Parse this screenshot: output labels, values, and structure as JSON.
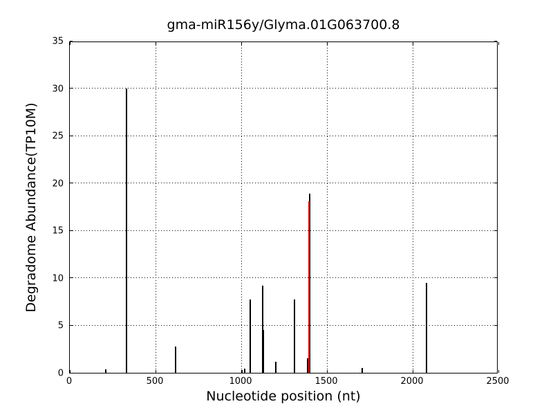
{
  "chart_data": {
    "type": "bar",
    "title": "gma-miR156y/Glyma.01G063700.8",
    "xlabel": "Nucleotide position (nt)",
    "ylabel": "Degradome Abundance(TP10M)",
    "xlim": [
      0,
      2500
    ],
    "ylim": [
      0,
      35
    ],
    "x_ticks": [
      0,
      500,
      1000,
      1500,
      2000,
      2500
    ],
    "y_ticks": [
      0,
      5,
      10,
      15,
      20,
      25,
      30,
      35
    ],
    "grid": {
      "x_lines": [
        500,
        1000,
        1500,
        2000
      ],
      "y_lines": [
        5,
        10,
        15,
        20,
        25,
        30
      ],
      "style": "dotted",
      "color": "#000000"
    },
    "bar_color_default": "#000000",
    "highlight_color": "#ff0000",
    "bars": [
      {
        "x": 208,
        "y": 0.4,
        "color": "#000000"
      },
      {
        "x": 332,
        "y": 30.0,
        "color": "#000000"
      },
      {
        "x": 618,
        "y": 2.75,
        "color": "#000000"
      },
      {
        "x": 1004,
        "y": 0.3,
        "color": "#000000"
      },
      {
        "x": 1021,
        "y": 0.45,
        "color": "#000000"
      },
      {
        "x": 1054,
        "y": 7.7,
        "color": "#000000"
      },
      {
        "x": 1124,
        "y": 9.2,
        "color": "#000000"
      },
      {
        "x": 1129,
        "y": 4.5,
        "color": "#000000"
      },
      {
        "x": 1203,
        "y": 1.2,
        "color": "#000000"
      },
      {
        "x": 1310,
        "y": 7.7,
        "color": "#000000"
      },
      {
        "x": 1388,
        "y": 1.5,
        "color": "#000000"
      },
      {
        "x": 1400,
        "y": 18.9,
        "color": "#000000"
      },
      {
        "x": 1396,
        "y": 18.1,
        "color": "#ff0000"
      },
      {
        "x": 1704,
        "y": 0.5,
        "color": "#000000"
      },
      {
        "x": 2081,
        "y": 9.5,
        "color": "#000000"
      }
    ]
  }
}
